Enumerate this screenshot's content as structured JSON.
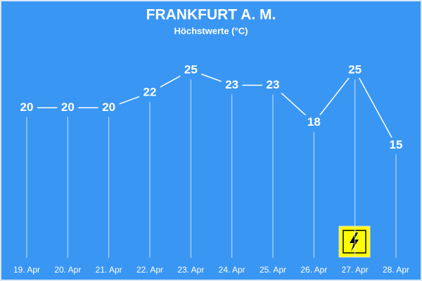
{
  "chart_data": {
    "type": "line",
    "title": "FRANKFURT A. M.",
    "subtitle": "Höchstwerte (°C)",
    "categories": [
      "19. Apr",
      "20. Apr",
      "21. Apr",
      "22. Apr",
      "23. Apr",
      "24. Apr",
      "25. Apr",
      "26. Apr",
      "27. Apr",
      "28. Apr"
    ],
    "values": [
      20,
      20,
      20,
      22,
      25,
      23,
      23,
      18,
      25,
      15
    ],
    "color": "#ffffff",
    "ylim": [
      0,
      25
    ]
  }
}
